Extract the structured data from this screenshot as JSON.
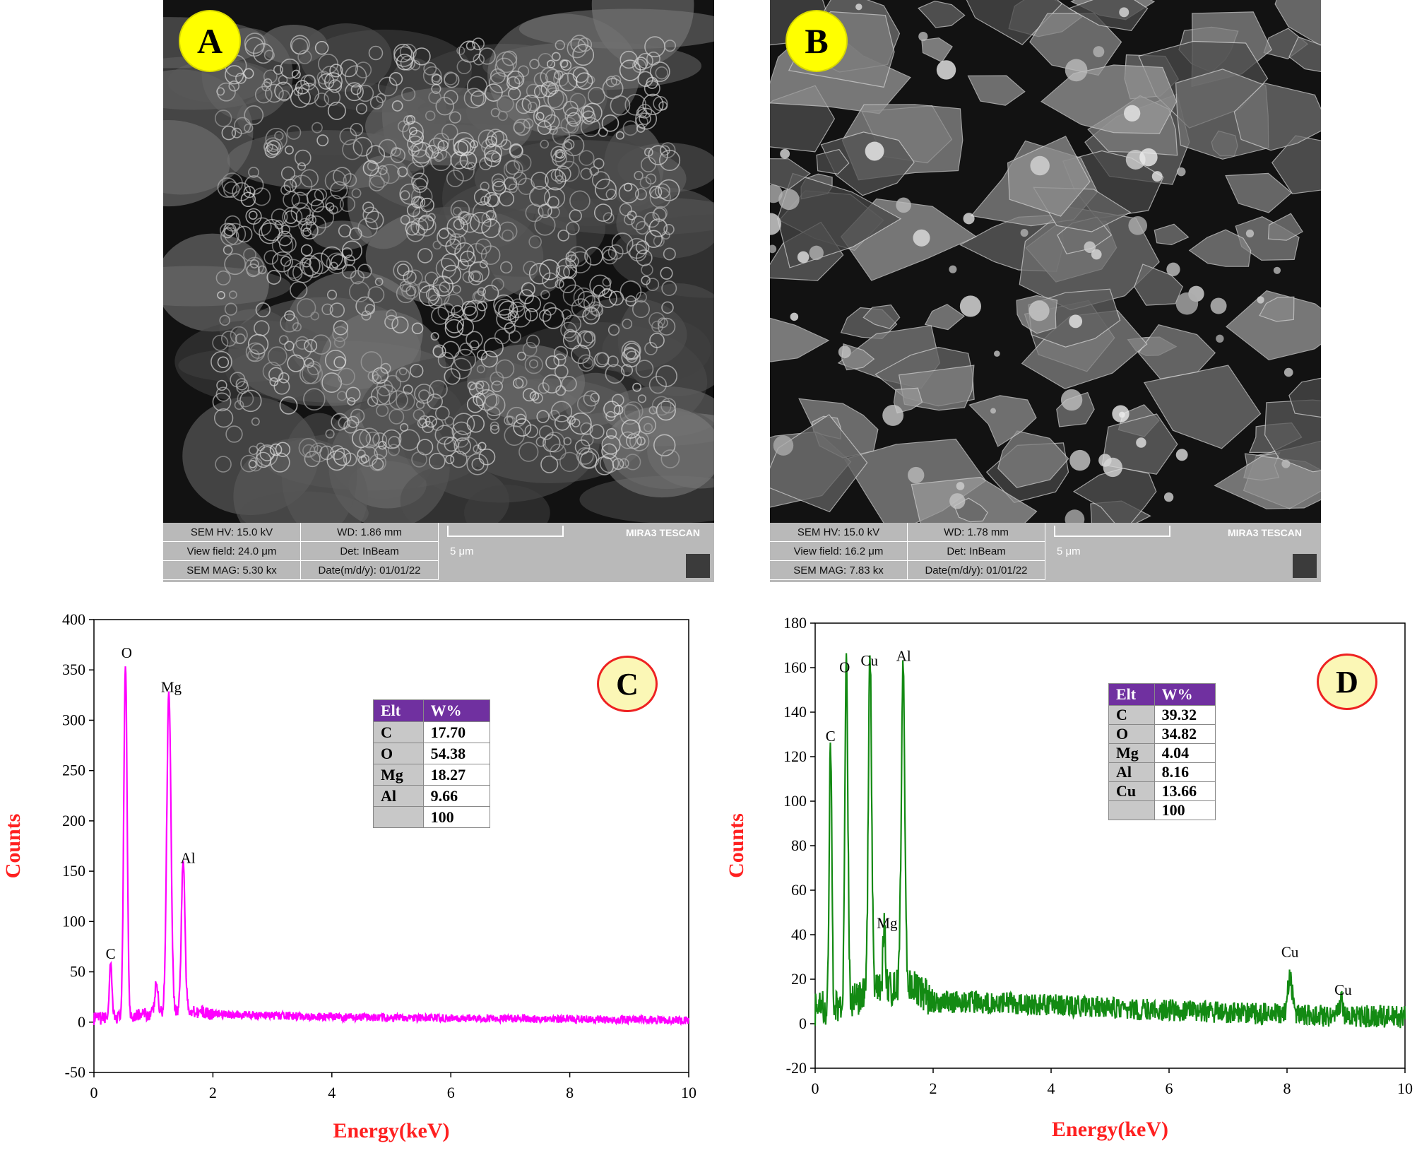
{
  "panels": {
    "A": {
      "badge": "A",
      "info": {
        "hv": "SEM HV: 15.0 kV",
        "wd": "WD: 1.86 mm",
        "view_field": "View field: 24.0 μm",
        "det": "Det: InBeam",
        "mag": "SEM MAG: 5.30 kx",
        "date": "Date(m/d/y): 01/01/22",
        "scale": "5 μm",
        "brand": "MIRA3 TESCAN"
      }
    },
    "B": {
      "badge": "B",
      "info": {
        "hv": "SEM HV: 15.0 kV",
        "wd": "WD: 1.78 mm",
        "view_field": "View field: 16.2 μm",
        "det": "Det: InBeam",
        "mag": "SEM MAG: 7.83 kx",
        "date": "Date(m/d/y): 01/01/22",
        "scale": "5 μm",
        "brand": "MIRA3 TESCAN"
      }
    }
  },
  "colors": {
    "trace_c": "#ff00ff",
    "trace_d": "#138a13",
    "axis_title": "#ff2020",
    "table_header": "#7030a0",
    "badge_sem": "#ffff00"
  },
  "chart_data": [
    {
      "type": "line",
      "badge": "C",
      "xlabel": "Energy(keV)",
      "ylabel": "Counts",
      "xlim": [
        0,
        10
      ],
      "ylim": [
        -50,
        400
      ],
      "xticks": [
        0,
        2,
        4,
        6,
        8,
        10
      ],
      "yticks": [
        -50,
        0,
        50,
        100,
        150,
        200,
        250,
        300,
        350,
        400
      ],
      "peaks": [
        {
          "label": "C",
          "energy": 0.28,
          "counts": 50,
          "width": 0.022
        },
        {
          "label": "O",
          "energy": 0.53,
          "counts": 352,
          "width": 0.028
        },
        {
          "label": "",
          "energy": 1.05,
          "counts": 30,
          "width": 0.025
        },
        {
          "label": "Mg",
          "energy": 1.26,
          "counts": 320,
          "width": 0.035
        },
        {
          "label": "Al",
          "energy": 1.5,
          "counts": 150,
          "width": 0.03
        }
      ],
      "peak_label_pos": {
        "C": [
          0.28,
          63
        ],
        "O": [
          0.55,
          362
        ],
        "Mg": [
          1.3,
          328
        ],
        "Al": [
          1.58,
          158
        ]
      },
      "baseline": [
        [
          0,
          3
        ],
        [
          1.6,
          12
        ],
        [
          2.0,
          8
        ],
        [
          4,
          5
        ],
        [
          8,
          3
        ],
        [
          10,
          2
        ]
      ],
      "table": {
        "headers": [
          "Elt",
          "W%"
        ],
        "rows": [
          [
            "C",
            "17.70"
          ],
          [
            "O",
            "54.38"
          ],
          [
            "Mg",
            "18.27"
          ],
          [
            "Al",
            "9.66"
          ],
          [
            "",
            "100"
          ]
        ]
      }
    },
    {
      "type": "line",
      "badge": "D",
      "xlabel": "Energy(keV)",
      "ylabel": "Counts",
      "xlim": [
        0,
        10
      ],
      "ylim": [
        -20,
        180
      ],
      "xticks": [
        0,
        2,
        4,
        6,
        8,
        10
      ],
      "yticks": [
        -20,
        0,
        20,
        40,
        60,
        80,
        100,
        120,
        140,
        160,
        180
      ],
      "peaks": [
        {
          "label": "C",
          "energy": 0.26,
          "counts": 118,
          "width": 0.022
        },
        {
          "label": "O",
          "energy": 0.53,
          "counts": 150,
          "width": 0.025
        },
        {
          "label": "Cu",
          "energy": 0.93,
          "counts": 155,
          "width": 0.028
        },
        {
          "label": "Mg",
          "energy": 1.17,
          "counts": 30,
          "width": 0.02
        },
        {
          "label": "Al",
          "energy": 1.49,
          "counts": 145,
          "width": 0.03
        },
        {
          "label": "Cu",
          "energy": 8.05,
          "counts": 17,
          "width": 0.04
        },
        {
          "label": "Cu",
          "energy": 8.92,
          "counts": 7,
          "width": 0.03
        }
      ],
      "peak_label_pos": {
        "C": [
          0.26,
          127
        ],
        "O": [
          0.5,
          158
        ],
        "Cu": [
          0.92,
          161
        ],
        "Mg": [
          1.22,
          43
        ],
        "Al": [
          1.5,
          163
        ],
        "Cu2": [
          8.05,
          30
        ],
        "Cu3": [
          8.95,
          13
        ]
      },
      "baseline": [
        [
          0,
          6
        ],
        [
          1.0,
          14
        ],
        [
          1.6,
          18
        ],
        [
          2.0,
          10
        ],
        [
          3.5,
          9
        ],
        [
          6,
          6
        ],
        [
          8,
          4
        ],
        [
          10,
          3
        ]
      ],
      "table": {
        "headers": [
          "Elt",
          "W%"
        ],
        "rows": [
          [
            "C",
            "39.32"
          ],
          [
            "O",
            "34.82"
          ],
          [
            "Mg",
            "4.04"
          ],
          [
            "Al",
            "8.16"
          ],
          [
            "Cu",
            "13.66"
          ],
          [
            "",
            "100"
          ]
        ]
      }
    }
  ]
}
